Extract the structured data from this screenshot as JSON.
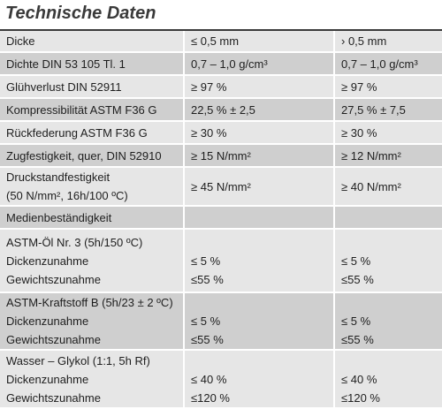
{
  "title": "Technische Daten",
  "rows": [
    {
      "c1": [
        "Dicke"
      ],
      "c2": [
        "≤ 0,5 mm"
      ],
      "c3": [
        "› 0,5 mm"
      ]
    },
    {
      "c1": [
        "Dichte DIN 53 105 Tl. 1"
      ],
      "c2": [
        "0,7 – 1,0 g/cm³"
      ],
      "c3": [
        "0,7 – 1,0 g/cm³"
      ]
    },
    {
      "c1": [
        "Glühverlust DIN 52911"
      ],
      "c2": [
        "≥ 97 %"
      ],
      "c3": [
        "≥ 97 %"
      ]
    },
    {
      "c1": [
        "Kompressibilität ASTM F36 G"
      ],
      "c2": [
        "22,5 % ± 2,5"
      ],
      "c3": [
        "27,5 % ± 7,5"
      ]
    },
    {
      "c1": [
        "Rückfederung ASTM F36 G"
      ],
      "c2": [
        "≥ 30 %"
      ],
      "c3": [
        "≥ 30 %"
      ]
    },
    {
      "c1": [
        "Zugfestigkeit, quer, DIN 52910"
      ],
      "c2": [
        "≥ 15 N/mm²"
      ],
      "c3": [
        "≥ 12 N/mm²"
      ]
    },
    {
      "c1": [
        "Druckstandfestigkeit",
        "(50 N/mm², 16h/100 ºC)"
      ],
      "c2": [
        "≥ 45 N/mm²"
      ],
      "c3": [
        "≥ 40 N/mm²"
      ]
    },
    {
      "c1": [
        "Medienbeständigkeit"
      ],
      "c2": [
        ""
      ],
      "c3": [
        ""
      ]
    },
    {
      "c1": [
        "ASTM-Öl Nr. 3 (5h/150 ºC)",
        "Dickenzunahme",
        "Gewichtszunahme"
      ],
      "c2": [
        "",
        "≤  5 %",
        "≤55 %"
      ],
      "c3": [
        "",
        "≤  5 %",
        "≤55 %"
      ]
    },
    {
      "c1": [
        "ASTM-Kraftstoff B (5h/23 ± 2 ºC)",
        "Dickenzunahme",
        "Gewichtszunahme"
      ],
      "c2": [
        "",
        "≤  5 %",
        "≤55 %"
      ],
      "c3": [
        "",
        "≤  5 %",
        "≤55 %"
      ]
    },
    {
      "c1": [
        "Wasser – Glykol (1:1, 5h Rf)",
        "Dickenzunahme",
        "Gewichtszunahme"
      ],
      "c2": [
        "",
        "≤  40 %",
        "≤120 %"
      ],
      "c3": [
        "",
        "≤  40 %",
        "≤120 %"
      ]
    }
  ]
}
